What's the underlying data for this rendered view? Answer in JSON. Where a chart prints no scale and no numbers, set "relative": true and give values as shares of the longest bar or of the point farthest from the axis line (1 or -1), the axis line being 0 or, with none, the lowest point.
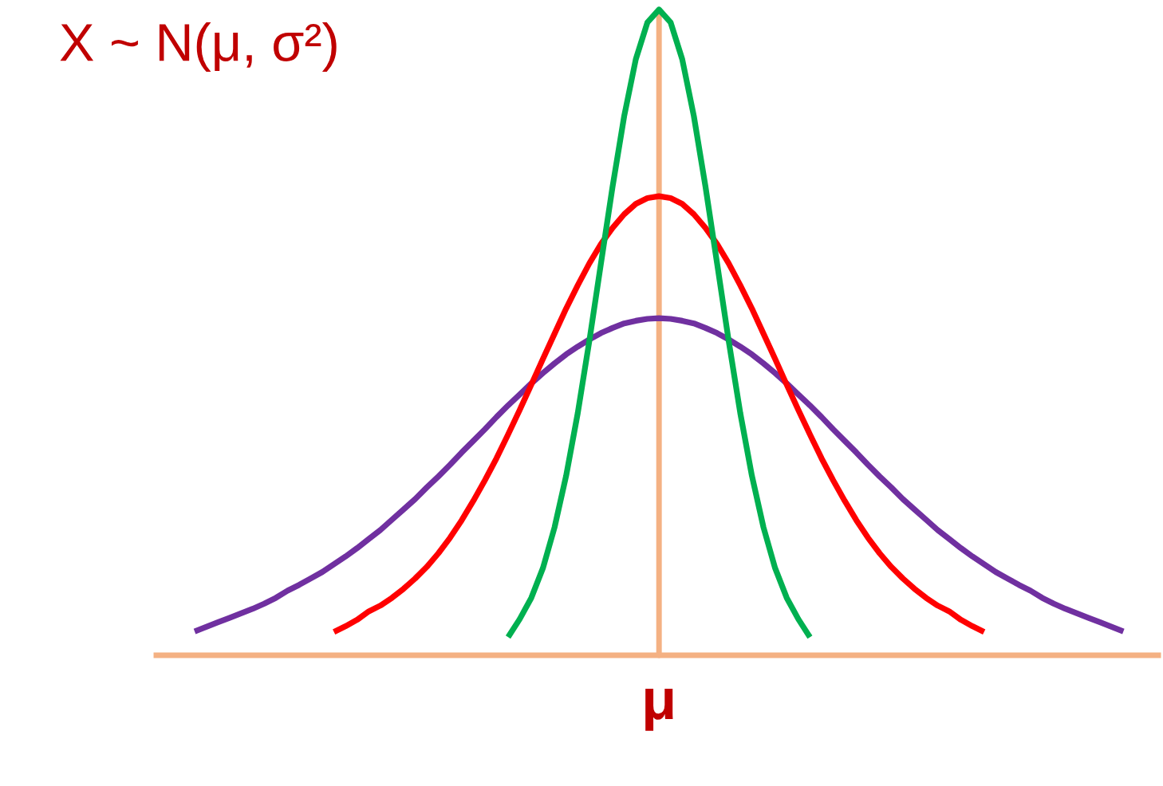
{
  "chart_data": {
    "type": "line",
    "title": "X ~ N(μ, σ²)",
    "relative": true,
    "categories": [
      null,
      null,
      null,
      null,
      null,
      null,
      null,
      null,
      null,
      null,
      null,
      null,
      null,
      null,
      null,
      null,
      null,
      null,
      null,
      null,
      null,
      null,
      null,
      null,
      null,
      null,
      null,
      null,
      null,
      null,
      null,
      null,
      null,
      null,
      null,
      null,
      null,
      null,
      null,
      null,
      null,
      null,
      null,
      null,
      null,
      null,
      null,
      null,
      null,
      null,
      null,
      null,
      null,
      null,
      null,
      null,
      null,
      null,
      null,
      null,
      null,
      null,
      null,
      null,
      null,
      null,
      null,
      null,
      null,
      null,
      null,
      null,
      null,
      null,
      null,
      null,
      null,
      null,
      null,
      null,
      null
    ],
    "series": [
      {
        "color": "#7030a0",
        "values": [
          0.037,
          0.044,
          0.051,
          0.058,
          0.065,
          0.072,
          0.08,
          0.089,
          0.1,
          0.109,
          0.119,
          0.129,
          0.141,
          0.153,
          0.166,
          0.18,
          0.194,
          0.21,
          0.226,
          0.242,
          0.26,
          0.277,
          0.295,
          0.314,
          0.332,
          0.35,
          0.369,
          0.387,
          0.404,
          0.421,
          0.437,
          0.452,
          0.466,
          0.478,
          0.489,
          0.499,
          0.507,
          0.514,
          0.518,
          0.521,
          0.522,
          0.521,
          0.518,
          0.514,
          0.507,
          0.499,
          0.489,
          0.478,
          0.466,
          0.452,
          0.437,
          0.421,
          0.404,
          0.387,
          0.369,
          0.35,
          0.332,
          0.314,
          0.295,
          0.277,
          0.26,
          0.242,
          0.226,
          0.21,
          0.194,
          0.18,
          0.166,
          0.153,
          0.141,
          0.129,
          0.119,
          0.109,
          0.1,
          0.089,
          0.08,
          0.072,
          0.065,
          0.058,
          0.051,
          0.044,
          0.037
        ]
      },
      {
        "color": "#ff0000",
        "values": [
          null,
          null,
          null,
          null,
          null,
          null,
          null,
          null,
          null,
          null,
          null,
          null,
          0.036,
          0.045,
          0.055,
          0.068,
          0.077,
          0.089,
          0.103,
          0.119,
          0.137,
          0.158,
          0.182,
          0.209,
          0.239,
          0.271,
          0.305,
          0.342,
          0.38,
          0.419,
          0.459,
          0.498,
          0.537,
          0.573,
          0.607,
          0.637,
          0.662,
          0.683,
          0.699,
          0.708,
          0.711,
          0.708,
          0.699,
          0.683,
          0.662,
          0.637,
          0.607,
          0.573,
          0.537,
          0.498,
          0.459,
          0.419,
          0.38,
          0.342,
          0.305,
          0.271,
          0.239,
          0.209,
          0.182,
          0.158,
          0.137,
          0.119,
          0.103,
          0.089,
          0.077,
          0.068,
          0.055,
          0.045,
          0.036,
          null,
          null,
          null,
          null,
          null,
          null,
          null,
          null,
          null,
          null,
          null,
          null
        ]
      },
      {
        "color": "#00b050",
        "values": [
          null,
          null,
          null,
          null,
          null,
          null,
          null,
          null,
          null,
          null,
          null,
          null,
          null,
          null,
          null,
          null,
          null,
          null,
          null,
          null,
          null,
          null,
          null,
          null,
          null,
          null,
          null,
          0.028,
          0.056,
          0.089,
          0.135,
          0.198,
          0.278,
          0.375,
          0.487,
          0.607,
          0.726,
          0.835,
          0.923,
          0.98,
          1,
          0.98,
          0.923,
          0.835,
          0.726,
          0.607,
          0.487,
          0.375,
          0.278,
          0.198,
          0.135,
          0.089,
          0.056,
          0.028,
          null,
          null,
          null,
          null,
          null,
          null,
          null,
          null,
          null,
          null,
          null,
          null,
          null,
          null,
          null,
          null,
          null,
          null,
          null,
          null,
          null,
          null,
          null,
          null,
          null,
          null,
          null
        ]
      }
    ],
    "ref_lines": [
      {
        "axis": "x",
        "label": "μ",
        "color": "#f4b183"
      }
    ]
  }
}
